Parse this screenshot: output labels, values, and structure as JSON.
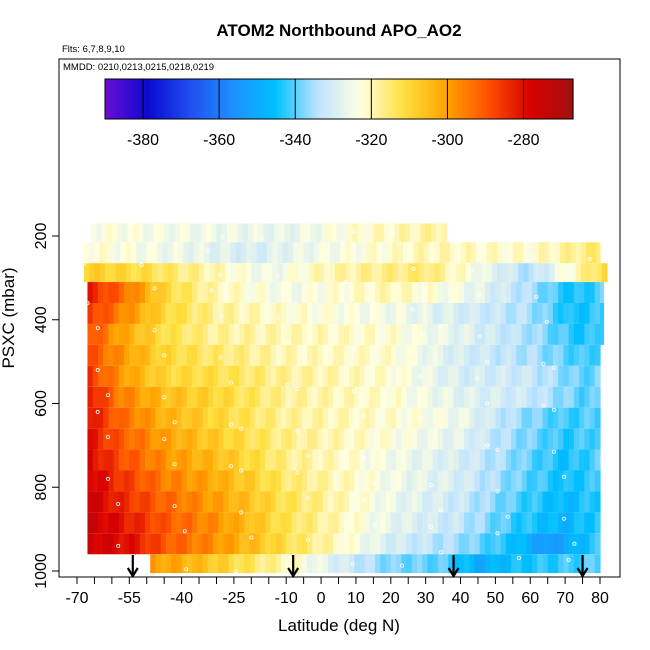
{
  "chart_data": {
    "type": "heatmap",
    "title": "ATOM2 Northbound APO_AO2",
    "annotations": {
      "flights": "Flts: 6,7,8,9,10",
      "dates": "MMDD: 0210,0213,0215,0218,0219"
    },
    "xlabel": "Latitude (deg N)",
    "ylabel": "PSXC (mbar)",
    "xlim": [
      -70,
      82
    ],
    "ylim": [
      1010,
      0
    ],
    "x_ticks": [
      -70,
      -55,
      -40,
      -25,
      -10,
      0,
      10,
      20,
      30,
      40,
      50,
      60,
      70,
      80
    ],
    "x_tick_labels": [
      "-70",
      "-55",
      "-40",
      "-25",
      "-10",
      "0",
      "10",
      "20",
      "30",
      "40",
      "50",
      "60",
      "70",
      "80"
    ],
    "y_ticks": [
      200,
      400,
      600,
      800,
      1000
    ],
    "y_tick_labels": [
      "200",
      "400",
      "600",
      "800",
      "1000"
    ],
    "colorbar": {
      "range": [
        -390,
        -267
      ],
      "ticks": [
        -380,
        -360,
        -340,
        -320,
        -300,
        -280
      ],
      "tick_labels": [
        "-380",
        "-360",
        "-340",
        "-320",
        "-300",
        "-280"
      ],
      "colors": [
        "#6a0dd6",
        "#0a0ad0",
        "#1f4ff0",
        "#1e90ff",
        "#00bfff",
        "#bfe3ff",
        "#ffffe0",
        "#ffe040",
        "#ffa500",
        "#ff5000",
        "#d80000",
        "#a01010"
      ]
    },
    "profile_markers_lat": [
      -54,
      -8,
      38,
      75
    ],
    "pressure_bins": [
      {
        "p_top": 170,
        "p_bot": 215,
        "lat_min": -66,
        "lat_max": 36,
        "profile": [
          [
            -66,
            -323
          ],
          [
            -40,
            -325
          ],
          [
            -10,
            -327
          ],
          [
            10,
            -322
          ],
          [
            36,
            -318
          ]
        ]
      },
      {
        "p_top": 215,
        "p_bot": 265,
        "lat_min": -68,
        "lat_max": 80,
        "profile": [
          [
            -68,
            -322
          ],
          [
            -40,
            -326
          ],
          [
            -20,
            -330
          ],
          [
            0,
            -325
          ],
          [
            30,
            -320
          ],
          [
            60,
            -322
          ],
          [
            80,
            -315
          ]
        ]
      },
      {
        "p_top": 265,
        "p_bot": 310,
        "lat_min": -68,
        "lat_max": 82,
        "profile": [
          [
            -68,
            -308
          ],
          [
            -50,
            -312
          ],
          [
            -30,
            -320
          ],
          [
            -15,
            -326
          ],
          [
            0,
            -320
          ],
          [
            30,
            -315
          ],
          [
            60,
            -335
          ],
          [
            82,
            -310
          ]
        ]
      },
      {
        "p_top": 310,
        "p_bot": 360,
        "lat_min": -67,
        "lat_max": 81,
        "profile": [
          [
            -67,
            -282
          ],
          [
            -55,
            -295
          ],
          [
            -45,
            -310
          ],
          [
            -30,
            -320
          ],
          [
            -10,
            -325
          ],
          [
            20,
            -320
          ],
          [
            40,
            -325
          ],
          [
            60,
            -335
          ],
          [
            72,
            -345
          ],
          [
            81,
            -340
          ]
        ]
      },
      {
        "p_top": 360,
        "p_bot": 410,
        "lat_min": -67,
        "lat_max": 81,
        "profile": [
          [
            -67,
            -285
          ],
          [
            -58,
            -295
          ],
          [
            -45,
            -310
          ],
          [
            -30,
            -318
          ],
          [
            -10,
            -322
          ],
          [
            20,
            -325
          ],
          [
            40,
            -330
          ],
          [
            60,
            -335
          ],
          [
            72,
            -345
          ],
          [
            81,
            -342
          ]
        ]
      },
      {
        "p_top": 410,
        "p_bot": 460,
        "lat_min": -67,
        "lat_max": 81,
        "profile": [
          [
            -67,
            -288
          ],
          [
            -58,
            -300
          ],
          [
            -45,
            -312
          ],
          [
            -30,
            -318
          ],
          [
            -10,
            -320
          ],
          [
            20,
            -322
          ],
          [
            40,
            -328
          ],
          [
            60,
            -335
          ],
          [
            75,
            -345
          ],
          [
            81,
            -340
          ]
        ]
      },
      {
        "p_top": 460,
        "p_bot": 510,
        "lat_min": -67,
        "lat_max": 80,
        "profile": [
          [
            -67,
            -288
          ],
          [
            -58,
            -298
          ],
          [
            -45,
            -310
          ],
          [
            -30,
            -315
          ],
          [
            -10,
            -320
          ],
          [
            20,
            -322
          ],
          [
            40,
            -330
          ],
          [
            60,
            -335
          ],
          [
            75,
            -342
          ],
          [
            80,
            -340
          ]
        ]
      },
      {
        "p_top": 510,
        "p_bot": 560,
        "lat_min": -67,
        "lat_max": 80,
        "profile": [
          [
            -67,
            -285
          ],
          [
            -58,
            -298
          ],
          [
            -45,
            -310
          ],
          [
            -30,
            -312
          ],
          [
            -10,
            -318
          ],
          [
            20,
            -322
          ],
          [
            40,
            -330
          ],
          [
            60,
            -332
          ],
          [
            75,
            -340
          ],
          [
            80,
            -338
          ]
        ]
      },
      {
        "p_top": 560,
        "p_bot": 610,
        "lat_min": -67,
        "lat_max": 80,
        "profile": [
          [
            -67,
            -280
          ],
          [
            -58,
            -295
          ],
          [
            -45,
            -305
          ],
          [
            -30,
            -310
          ],
          [
            -10,
            -318
          ],
          [
            20,
            -322
          ],
          [
            40,
            -328
          ],
          [
            60,
            -332
          ],
          [
            75,
            -340
          ],
          [
            80,
            -340
          ]
        ]
      },
      {
        "p_top": 610,
        "p_bot": 660,
        "lat_min": -67,
        "lat_max": 80,
        "profile": [
          [
            -67,
            -280
          ],
          [
            -58,
            -292
          ],
          [
            -45,
            -303
          ],
          [
            -30,
            -310
          ],
          [
            -10,
            -318
          ],
          [
            20,
            -322
          ],
          [
            40,
            -326
          ],
          [
            55,
            -335
          ],
          [
            70,
            -342
          ],
          [
            80,
            -340
          ]
        ]
      },
      {
        "p_top": 660,
        "p_bot": 710,
        "lat_min": -67,
        "lat_max": 80,
        "profile": [
          [
            -67,
            -280
          ],
          [
            -58,
            -290
          ],
          [
            -45,
            -300
          ],
          [
            -30,
            -308
          ],
          [
            -10,
            -317
          ],
          [
            20,
            -323
          ],
          [
            40,
            -328
          ],
          [
            55,
            -336
          ],
          [
            70,
            -343
          ],
          [
            80,
            -340
          ]
        ]
      },
      {
        "p_top": 710,
        "p_bot": 760,
        "lat_min": -67,
        "lat_max": 80,
        "profile": [
          [
            -67,
            -278
          ],
          [
            -58,
            -288
          ],
          [
            -45,
            -298
          ],
          [
            -30,
            -305
          ],
          [
            -10,
            -317
          ],
          [
            20,
            -325
          ],
          [
            40,
            -330
          ],
          [
            55,
            -337
          ],
          [
            70,
            -345
          ],
          [
            80,
            -340
          ]
        ]
      },
      {
        "p_top": 760,
        "p_bot": 810,
        "lat_min": -67,
        "lat_max": 80,
        "profile": [
          [
            -67,
            -276
          ],
          [
            -58,
            -285
          ],
          [
            -45,
            -295
          ],
          [
            -30,
            -302
          ],
          [
            -10,
            -315
          ],
          [
            20,
            -325
          ],
          [
            40,
            -330
          ],
          [
            55,
            -338
          ],
          [
            70,
            -345
          ],
          [
            80,
            -342
          ]
        ]
      },
      {
        "p_top": 810,
        "p_bot": 860,
        "lat_min": -67,
        "lat_max": 80,
        "profile": [
          [
            -67,
            -275
          ],
          [
            -58,
            -283
          ],
          [
            -45,
            -292
          ],
          [
            -30,
            -300
          ],
          [
            -10,
            -313
          ],
          [
            20,
            -326
          ],
          [
            40,
            -332
          ],
          [
            55,
            -340
          ],
          [
            70,
            -347
          ],
          [
            80,
            -342
          ]
        ]
      },
      {
        "p_top": 860,
        "p_bot": 910,
        "lat_min": -67,
        "lat_max": 80,
        "profile": [
          [
            -67,
            -275
          ],
          [
            -58,
            -280
          ],
          [
            -45,
            -290
          ],
          [
            -30,
            -298
          ],
          [
            -10,
            -313
          ],
          [
            20,
            -327
          ],
          [
            40,
            -333
          ],
          [
            55,
            -342
          ],
          [
            70,
            -348
          ],
          [
            80,
            -342
          ]
        ]
      },
      {
        "p_top": 910,
        "p_bot": 960,
        "lat_min": -67,
        "lat_max": 80,
        "profile": [
          [
            -67,
            -276
          ],
          [
            -55,
            -280
          ],
          [
            -45,
            -290
          ],
          [
            -30,
            -298
          ],
          [
            -10,
            -312
          ],
          [
            20,
            -330
          ],
          [
            40,
            -336
          ],
          [
            55,
            -345
          ],
          [
            65,
            -355
          ],
          [
            80,
            -342
          ]
        ]
      },
      {
        "p_top": 960,
        "p_bot": 1005,
        "lat_min": -49,
        "lat_max": 80,
        "profile": [
          [
            -49,
            -300
          ],
          [
            -40,
            -302
          ],
          [
            -30,
            -308
          ],
          [
            -10,
            -320
          ],
          [
            0,
            -327
          ],
          [
            20,
            -338
          ],
          [
            35,
            -340
          ],
          [
            45,
            -350
          ],
          [
            55,
            -345
          ],
          [
            70,
            -342
          ],
          [
            80,
            -340
          ]
        ]
      }
    ]
  }
}
